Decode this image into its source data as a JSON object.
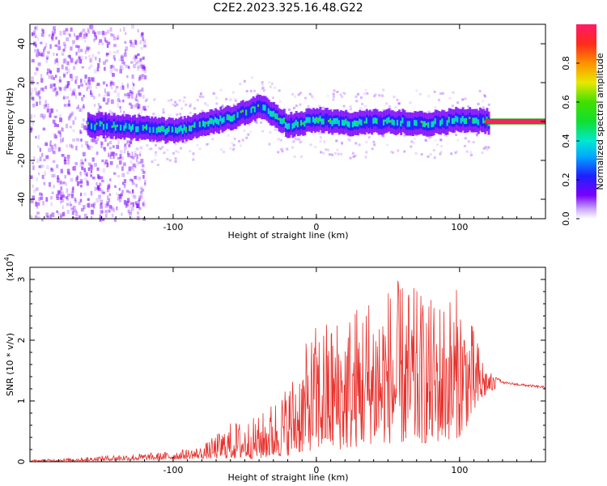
{
  "title": "C2E2.2023.325.16.48.G22",
  "colors": {
    "snr_line": "#e8312c",
    "spectrum_low": "#7a00ff",
    "spectrum_mid": "#00e0c0",
    "spectrum_high": "#ff2060"
  },
  "chart_data": [
    {
      "type": "heatmap",
      "xlabel": "Height of straight line (km)",
      "ylabel": "Frequency (Hz)",
      "xlim": [
        -200,
        160
      ],
      "ylim": [
        -50,
        50
      ],
      "x_ticks": [
        -100,
        0,
        100
      ],
      "y_ticks": [
        -40,
        -20,
        0,
        20,
        40
      ],
      "colorbar": {
        "label": "Normalized spectral amplitude",
        "range": [
          0.0,
          1.0
        ],
        "ticks": [
          "0.0",
          "0.2",
          "0.4",
          "0.6",
          "0.8"
        ]
      },
      "ridge": {
        "description_points_x": [
          -150,
          -100,
          -60,
          -40,
          -30,
          -20,
          0,
          20,
          50,
          80,
          100,
          120,
          160
        ],
        "frequency_hz": [
          -2,
          -5,
          2,
          8,
          3,
          -2,
          1,
          -1,
          0,
          -1,
          1,
          0,
          0
        ]
      }
    },
    {
      "type": "line",
      "xlabel": "Height of straight line (km)",
      "ylabel": "SNR (10 * v/v)",
      "y_scale_label": "(x10",
      "y_scale_exponent": "4",
      "y_scale_suffix": ")",
      "xlim": [
        -200,
        160
      ],
      "ylim": [
        0,
        3.2
      ],
      "x_ticks": [
        -100,
        0,
        100
      ],
      "y_ticks": [
        0,
        1,
        2,
        3
      ],
      "envelope": {
        "x": [
          -200,
          -170,
          -140,
          -110,
          -80,
          -60,
          -40,
          -20,
          0,
          20,
          40,
          60,
          80,
          100,
          120,
          130,
          160
        ],
        "upper": [
          0.03,
          0.06,
          0.12,
          0.15,
          0.25,
          0.65,
          0.75,
          1.3,
          2.3,
          2.5,
          2.9,
          3.0,
          2.7,
          2.9,
          1.5,
          1.3,
          1.22
        ],
        "lower": [
          0.0,
          0.01,
          0.02,
          0.03,
          0.05,
          0.05,
          0.05,
          0.1,
          0.2,
          0.2,
          0.3,
          0.3,
          0.3,
          0.4,
          1.15,
          1.2,
          1.2
        ]
      }
    }
  ]
}
